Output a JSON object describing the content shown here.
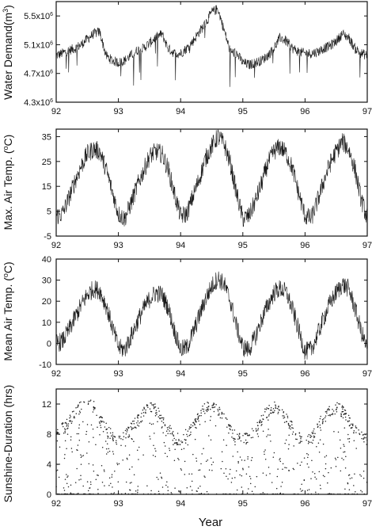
{
  "figure": {
    "xlabel": "Year",
    "line_color": "#1a1a1a",
    "point_color": "#222222",
    "background": "#ffffff"
  },
  "chart_data": [
    {
      "type": "line",
      "ylabel": "Water Demand(m³)",
      "ylabel_parts": {
        "main": "Water Demand(m",
        "sup": "3",
        "end": ")"
      },
      "xlim": [
        92,
        97
      ],
      "ylim": [
        4300000,
        5700000
      ],
      "xticks": [
        92,
        93,
        94,
        95,
        96,
        97
      ],
      "xtick_labels": [
        "92",
        "93",
        "94",
        "95",
        "96",
        "97"
      ],
      "yticks": [
        4300000,
        4700000,
        5100000,
        5500000
      ],
      "ytick_parts": [
        {
          "base": "4.3x10",
          "exp": "6"
        },
        {
          "base": "4.7x10",
          "exp": "6"
        },
        {
          "base": "5.1x10",
          "exp": "6"
        },
        {
          "base": "5.5x10",
          "exp": "6"
        }
      ],
      "series": [
        {
          "x": [
            92.0,
            92.1,
            92.2,
            92.3,
            92.4,
            92.5,
            92.6,
            92.7,
            92.8,
            92.9,
            93.0,
            93.1,
            93.2,
            93.3,
            93.4,
            93.5,
            93.6,
            93.7,
            93.8,
            93.9,
            94.0,
            94.1,
            94.2,
            94.3,
            94.4,
            94.5,
            94.6,
            94.7,
            94.8,
            94.9,
            95.0,
            95.1,
            95.2,
            95.3,
            95.4,
            95.5,
            95.6,
            95.7,
            95.8,
            95.9,
            96.0,
            96.1,
            96.2,
            96.3,
            96.4,
            96.5,
            96.6,
            96.7,
            96.8,
            96.9,
            97.0
          ],
          "y": [
            4950000,
            4980000,
            5020000,
            5050000,
            5100000,
            5180000,
            5250000,
            5280000,
            4950000,
            4880000,
            4850000,
            4880000,
            4950000,
            5020000,
            5050000,
            5120000,
            5200000,
            5250000,
            5050000,
            4980000,
            4980000,
            5050000,
            5150000,
            5280000,
            5400000,
            5550000,
            5600000,
            5300000,
            5000000,
            4980000,
            4850000,
            4820000,
            4850000,
            4880000,
            4950000,
            5050000,
            5200000,
            5150000,
            5050000,
            5000000,
            4980000,
            4980000,
            5000000,
            5050000,
            5080000,
            5150000,
            5250000,
            5200000,
            5050000,
            4980000,
            4950000
          ]
        }
      ]
    },
    {
      "type": "line",
      "ylabel": "Max. Air Temp. (oC)",
      "ylabel_parts": {
        "main": "Max. Air Temp. (",
        "sup": "o",
        "end": "C)"
      },
      "xlim": [
        92,
        97
      ],
      "ylim": [
        -5,
        38
      ],
      "xticks": [
        92,
        93,
        94,
        95,
        96,
        97
      ],
      "xtick_labels": [
        "92",
        "93",
        "94",
        "95",
        "96",
        "97"
      ],
      "yticks": [
        -5,
        5,
        15,
        25,
        35
      ],
      "ytick_labels": [
        "-5",
        "5",
        "15",
        "25",
        "35"
      ],
      "series": [
        {
          "x": [
            92.0,
            92.1,
            92.2,
            92.3,
            92.4,
            92.5,
            92.6,
            92.7,
            92.8,
            92.9,
            93.0,
            93.1,
            93.2,
            93.3,
            93.4,
            93.5,
            93.6,
            93.7,
            93.8,
            93.9,
            94.0,
            94.1,
            94.2,
            94.3,
            94.4,
            94.5,
            94.6,
            94.7,
            94.8,
            94.9,
            95.0,
            95.1,
            95.2,
            95.3,
            95.4,
            95.5,
            95.6,
            95.7,
            95.8,
            95.9,
            96.0,
            96.1,
            96.2,
            96.3,
            96.4,
            96.5,
            96.6,
            96.7,
            96.8,
            96.9,
            97.0
          ],
          "y": [
            3,
            4,
            10,
            17,
            23,
            28,
            30,
            29,
            22,
            13,
            4,
            2,
            8,
            15,
            21,
            27,
            29,
            28,
            22,
            12,
            3,
            4,
            11,
            18,
            26,
            31,
            35,
            32,
            24,
            12,
            2,
            3,
            9,
            16,
            24,
            29,
            31,
            28,
            22,
            12,
            3,
            2,
            9,
            17,
            24,
            29,
            33,
            30,
            22,
            10,
            2
          ]
        }
      ]
    },
    {
      "type": "line",
      "ylabel": "Mean Air Temp. (oC)",
      "ylabel_parts": {
        "main": "Mean Air Temp. (",
        "sup": "o",
        "end": "C)"
      },
      "xlim": [
        92,
        97
      ],
      "ylim": [
        -10,
        40
      ],
      "xticks": [
        92,
        93,
        94,
        95,
        96,
        97
      ],
      "xtick_labels": [
        "92",
        "93",
        "94",
        "95",
        "96",
        "97"
      ],
      "yticks": [
        -10,
        0,
        10,
        20,
        30,
        40
      ],
      "ytick_labels": [
        "-10",
        "0",
        "10",
        "20",
        "30",
        "40"
      ],
      "series": [
        {
          "x": [
            92.0,
            92.1,
            92.2,
            92.3,
            92.4,
            92.5,
            92.6,
            92.7,
            92.8,
            92.9,
            93.0,
            93.1,
            93.2,
            93.3,
            93.4,
            93.5,
            93.6,
            93.7,
            93.8,
            93.9,
            94.0,
            94.1,
            94.2,
            94.3,
            94.4,
            94.5,
            94.6,
            94.7,
            94.8,
            94.9,
            95.0,
            95.1,
            95.2,
            95.3,
            95.4,
            95.5,
            95.6,
            95.7,
            95.8,
            95.9,
            96.0,
            96.1,
            96.2,
            96.3,
            96.4,
            96.5,
            96.6,
            96.7,
            96.8,
            96.9,
            97.0
          ],
          "y": [
            0,
            1,
            6,
            12,
            18,
            23,
            26,
            25,
            18,
            8,
            -2,
            -3,
            3,
            10,
            16,
            21,
            24,
            23,
            17,
            6,
            -3,
            -2,
            5,
            13,
            21,
            27,
            31,
            28,
            20,
            8,
            -2,
            -3,
            3,
            11,
            18,
            24,
            26,
            24,
            16,
            6,
            -4,
            -3,
            4,
            12,
            19,
            24,
            28,
            26,
            17,
            6,
            -3
          ]
        }
      ]
    },
    {
      "type": "scatter",
      "ylabel": "Sunshine-Duration (hrs)",
      "xlabel": "Year",
      "xlim": [
        92,
        97
      ],
      "ylim": [
        0,
        14
      ],
      "xticks": [
        92,
        93,
        94,
        95,
        96,
        97
      ],
      "xtick_labels": [
        "92",
        "93",
        "94",
        "95",
        "96",
        "97"
      ],
      "yticks": [
        0,
        4,
        8,
        12
      ],
      "ytick_labels": [
        "0",
        "4",
        "8",
        "12"
      ],
      "envelope": {
        "x": [
          92.0,
          92.1,
          92.2,
          92.3,
          92.4,
          92.5,
          92.6,
          92.7,
          92.8,
          92.9,
          93.0,
          93.1,
          93.2,
          93.3,
          93.4,
          93.5,
          93.6,
          93.7,
          93.8,
          93.9,
          94.0,
          94.1,
          94.2,
          94.3,
          94.4,
          94.5,
          94.6,
          94.7,
          94.8,
          94.9,
          95.0,
          95.1,
          95.2,
          95.3,
          95.4,
          95.5,
          95.6,
          95.7,
          95.8,
          95.9,
          96.0,
          96.1,
          96.2,
          96.3,
          96.4,
          96.5,
          96.6,
          96.7,
          96.8,
          96.9,
          97.0
        ],
        "y": [
          8.5,
          9.5,
          10.5,
          11.5,
          12.5,
          13,
          12.5,
          11,
          9.5,
          8.5,
          8,
          8.5,
          9.5,
          10.5,
          11.5,
          12.2,
          12,
          11,
          9.5,
          8.3,
          8,
          8.8,
          10,
          11.2,
          12.2,
          12.5,
          12,
          10.8,
          9.3,
          8.2,
          8,
          8.5,
          9.5,
          10.8,
          11.8,
          12.3,
          12,
          11,
          9.5,
          8.3,
          8,
          8.5,
          9.8,
          11,
          12,
          12.3,
          11.8,
          10.8,
          9.5,
          8.5,
          8.2
        ]
      }
    }
  ]
}
